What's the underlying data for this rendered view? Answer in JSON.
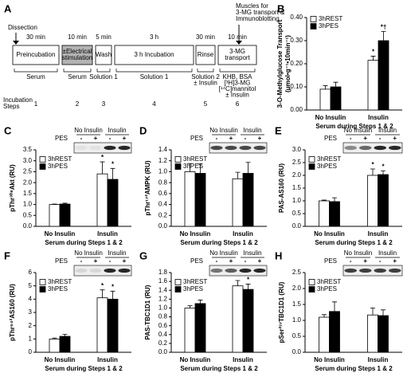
{
  "protocol": {
    "panel": "A",
    "dissection": "Dissection",
    "final": [
      "Muscles for",
      "3-MG transport &",
      "Immunoblotting"
    ],
    "steps_label": [
      "Incubation",
      "Steps"
    ],
    "box_colors": [
      "#ffffff",
      "#b3b3b3",
      "#ffffff",
      "#ffffff",
      "#ffffff",
      "#ffffff"
    ],
    "steps": [
      {
        "time": "30 min",
        "box": [
          "Preincubation"
        ],
        "solution": [
          "Serum"
        ],
        "number": 1
      },
      {
        "time": "10 min",
        "box": [
          "±Electrical",
          "stimulation"
        ],
        "solution": [
          "Serum"
        ],
        "number": 2
      },
      {
        "time": "5 min",
        "box": [
          "Wash"
        ],
        "solution": [
          "Solution 1"
        ],
        "number": 3
      },
      {
        "time": "3 h",
        "box": [
          "3 h Incubation"
        ],
        "solution": [
          "Solution 1"
        ],
        "number": 4
      },
      {
        "time": "30 min",
        "box": [
          "Rinse"
        ],
        "solution": [
          "Solution 2",
          "± Insulin"
        ],
        "number": 5
      },
      {
        "time": "10 min",
        "box": [
          "3-MG",
          "transport"
        ],
        "solution": [
          "KHB, BSA",
          "[³H]3-MG",
          "[¹⁴C]mannitol",
          "± Insulin"
        ],
        "number": 6
      }
    ]
  },
  "chart_data": [
    {
      "panel": "B",
      "type": "bar",
      "ylabel": [
        "3-O-Methylglucose Transport",
        "(μmol•g⁻¹•10min⁻¹)"
      ],
      "xlabel": "Serum during Steps 1 & 2",
      "categories": [
        "No Insulin",
        "Insulin"
      ],
      "series": [
        {
          "name": "3hREST",
          "color": "#ffffff",
          "values": [
            0.09,
            0.215
          ],
          "errors": [
            0.015,
            0.018
          ],
          "annotations": [
            null,
            "*"
          ]
        },
        {
          "name": "3hPES",
          "color": "#000000",
          "values": [
            0.1,
            0.3
          ],
          "errors": [
            0.02,
            0.04
          ],
          "annotations": [
            null,
            "*†"
          ]
        }
      ],
      "ylim": [
        0,
        0.4
      ],
      "yticks": [
        {
          "value": 0,
          "label": "0.00"
        },
        {
          "value": 0.1,
          "label": "0.10"
        },
        {
          "value": 0.2,
          "label": "0.20"
        },
        {
          "value": 0.3,
          "label": "0.30"
        },
        {
          "value": 0.4,
          "label": "0.40"
        }
      ]
    },
    {
      "panel": "C",
      "type": "bar",
      "ylabel": "pThr³⁰⁸Akt (RU)",
      "xlabel": "Serum during Steps 1 & 2",
      "blot": {
        "groups": [
          "No Insulin",
          "Insulin"
        ],
        "row_label": "PES",
        "signs": [
          "-",
          "+",
          "-",
          "+"
        ]
      },
      "categories": [
        "No Insulin",
        "Insulin"
      ],
      "series": [
        {
          "name": "3hREST",
          "color": "#ffffff",
          "values": [
            1.0,
            2.4
          ],
          "errors": [
            0.02,
            0.55
          ],
          "annotations": [
            null,
            "*"
          ]
        },
        {
          "name": "3hPES",
          "color": "#000000",
          "values": [
            1.02,
            2.15
          ],
          "errors": [
            0.04,
            0.5
          ],
          "annotations": [
            null,
            "*"
          ]
        }
      ],
      "ylim": [
        0,
        3.5
      ],
      "yticks": [
        {
          "value": 0,
          "label": "0.0"
        },
        {
          "value": 0.5,
          "label": "0.5"
        },
        {
          "value": 1,
          "label": "1.0"
        },
        {
          "value": 1.5,
          "label": "1.5"
        },
        {
          "value": 2,
          "label": "2.0"
        },
        {
          "value": 2.5,
          "label": "2.5"
        },
        {
          "value": 3,
          "label": "3.0"
        },
        {
          "value": 3.5,
          "label": "3.5"
        }
      ]
    },
    {
      "panel": "D",
      "type": "bar",
      "ylabel": "pThr¹⁷²AMPK (RU)",
      "xlabel": "Serum during Steps 1 & 2",
      "blot": {
        "groups": [
          "No Insulin",
          "Insulin"
        ],
        "row_label": "PES",
        "signs": [
          "-",
          "+",
          "-",
          "+"
        ]
      },
      "categories": [
        "No Insulin",
        "Insulin"
      ],
      "series": [
        {
          "name": "3hREST",
          "color": "#ffffff",
          "values": [
            1.0,
            0.87
          ],
          "errors": [
            0.15,
            0.12
          ]
        },
        {
          "name": "3hPES",
          "color": "#000000",
          "values": [
            0.97,
            0.97
          ],
          "errors": [
            0.17,
            0.2
          ]
        }
      ],
      "ylim": [
        0,
        1.4
      ],
      "yticks": [
        {
          "value": 0,
          "label": "0.0"
        },
        {
          "value": 0.2,
          "label": "0.2"
        },
        {
          "value": 0.4,
          "label": "0.4"
        },
        {
          "value": 0.6,
          "label": "0.6"
        },
        {
          "value": 0.8,
          "label": "0.8"
        },
        {
          "value": 1,
          "label": "1.0"
        },
        {
          "value": 1.2,
          "label": "1.2"
        },
        {
          "value": 1.4,
          "label": "1.4"
        }
      ]
    },
    {
      "panel": "E",
      "type": "bar",
      "ylabel": "PAS-AS160 (RU)",
      "xlabel": "Serum during Steps 1 & 2",
      "blot": {
        "groups": [
          "No Insulin",
          "Insulin"
        ],
        "row_label": "PES",
        "signs": [
          "-",
          "+",
          "-",
          "+"
        ]
      },
      "categories": [
        "No Insulin",
        "Insulin"
      ],
      "series": [
        {
          "name": "3hREST",
          "color": "#ffffff",
          "values": [
            1.0,
            2.0
          ],
          "errors": [
            0.03,
            0.25
          ],
          "annotations": [
            null,
            "*"
          ]
        },
        {
          "name": "3hPES",
          "color": "#000000",
          "values": [
            0.97,
            2.03
          ],
          "errors": [
            0.15,
            0.15
          ],
          "annotations": [
            null,
            "*"
          ]
        }
      ],
      "ylim": [
        0,
        3
      ],
      "yticks": [
        {
          "value": 0,
          "label": "0.0"
        },
        {
          "value": 0.5,
          "label": "0.5"
        },
        {
          "value": 1,
          "label": "1.0"
        },
        {
          "value": 1.5,
          "label": "1.5"
        },
        {
          "value": 2,
          "label": "2.0"
        },
        {
          "value": 2.5,
          "label": "2.5"
        },
        {
          "value": 3,
          "label": "3.0"
        }
      ]
    },
    {
      "panel": "F",
      "type": "bar",
      "ylabel": "pThr⁶⁴²AS160 (RU)",
      "xlabel": "Serum during Steps 1 & 2",
      "blot": {
        "groups": [
          "No Insulin",
          "Insulin"
        ],
        "row_label": "PES",
        "signs": [
          "-",
          "+",
          "-",
          "+"
        ]
      },
      "categories": [
        "No Insulin",
        "Insulin"
      ],
      "series": [
        {
          "name": "3hREST",
          "color": "#ffffff",
          "values": [
            1.0,
            4.1
          ],
          "errors": [
            0.07,
            0.6
          ],
          "annotations": [
            null,
            "*"
          ]
        },
        {
          "name": "3hPES",
          "color": "#000000",
          "values": [
            1.2,
            4.0
          ],
          "errors": [
            0.15,
            0.6
          ],
          "annotations": [
            null,
            "*"
          ]
        }
      ],
      "ylim": [
        0,
        6
      ],
      "yticks": [
        0,
        1,
        2,
        3,
        4,
        5,
        6
      ]
    },
    {
      "panel": "G",
      "type": "bar",
      "ylabel": "PAS-TBC1D1 (RU)",
      "xlabel": "Serum during Steps 1 & 2",
      "blot": {
        "groups": [
          "No Insulin",
          "Insulin"
        ],
        "row_label": "PES",
        "signs": [
          "-",
          "+",
          "-",
          "+"
        ]
      },
      "categories": [
        "No Insulin",
        "Insulin"
      ],
      "series": [
        {
          "name": "3hREST",
          "color": "#ffffff",
          "values": [
            1.0,
            1.5
          ],
          "errors": [
            0.05,
            0.12
          ],
          "annotations": [
            null,
            "*"
          ]
        },
        {
          "name": "3hPES",
          "color": "#000000",
          "values": [
            1.1,
            1.42
          ],
          "errors": [
            0.08,
            0.12
          ],
          "annotations": [
            null,
            "*"
          ]
        }
      ],
      "ylim": [
        0,
        1.8
      ],
      "yticks": [
        {
          "value": 0,
          "label": "0.0"
        },
        {
          "value": 0.2,
          "label": "0.2"
        },
        {
          "value": 0.4,
          "label": "0.4"
        },
        {
          "value": 0.6,
          "label": "0.6"
        },
        {
          "value": 0.8,
          "label": "0.8"
        },
        {
          "value": 1,
          "label": "1.0"
        },
        {
          "value": 1.2,
          "label": "1.2"
        },
        {
          "value": 1.4,
          "label": "1.4"
        },
        {
          "value": 1.6,
          "label": "1.6"
        },
        {
          "value": 1.8,
          "label": "1.8"
        }
      ]
    },
    {
      "panel": "H",
      "type": "bar",
      "ylabel": "pSer²³⁷TBC1D1 (RU)",
      "xlabel": "Serum during Steps 1 & 2",
      "blot": {
        "groups": [
          "No Insulin",
          "Insulin"
        ],
        "row_label": "PES",
        "signs": [
          "-",
          "+",
          "-",
          "+"
        ]
      },
      "categories": [
        "No Insulin",
        "Insulin"
      ],
      "series": [
        {
          "name": "3hREST",
          "color": "#ffffff",
          "values": [
            1.1,
            1.17
          ],
          "errors": [
            0.08,
            0.22
          ]
        },
        {
          "name": "3hPES",
          "color": "#000000",
          "values": [
            1.28,
            1.15
          ],
          "errors": [
            0.3,
            0.18
          ]
        }
      ],
      "ylim": [
        0,
        2.5
      ],
      "yticks": [
        {
          "value": 0,
          "label": "0.0"
        },
        {
          "value": 0.5,
          "label": "0.5"
        },
        {
          "value": 1,
          "label": "1.0"
        },
        {
          "value": 1.5,
          "label": "1.5"
        },
        {
          "value": 2,
          "label": "2.0"
        },
        {
          "value": 2.5,
          "label": "2.5"
        }
      ]
    }
  ]
}
